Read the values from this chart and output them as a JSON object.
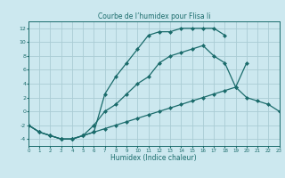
{
  "title": "Courbe de l’humidex pour Flisa Ii",
  "xlabel": "Humidex (Indice chaleur)",
  "xlim": [
    0,
    23
  ],
  "ylim": [
    -5,
    13
  ],
  "yticks": [
    -4,
    -2,
    0,
    2,
    4,
    6,
    8,
    10,
    12
  ],
  "xticks": [
    0,
    1,
    2,
    3,
    4,
    5,
    6,
    7,
    8,
    9,
    10,
    11,
    12,
    13,
    14,
    15,
    16,
    17,
    18,
    19,
    20,
    21,
    22,
    23
  ],
  "bg_color": "#cce8ef",
  "grid_color": "#aaccd4",
  "line_color": "#1a6b6b",
  "curve1_x": [
    0,
    1,
    2,
    3,
    4,
    5,
    6,
    7,
    8,
    9,
    10,
    11,
    12,
    13,
    14,
    15,
    16,
    17,
    18
  ],
  "curve1_y": [
    -2,
    -3,
    -3.5,
    -4,
    -4,
    -3.5,
    -3,
    2.5,
    5,
    7,
    9,
    11,
    11.5,
    11.5,
    12,
    12,
    12,
    12,
    11
  ],
  "curve2_x": [
    0,
    1,
    2,
    3,
    4,
    5,
    6,
    7,
    8,
    9,
    10,
    11,
    12,
    13,
    14,
    15,
    16,
    17,
    18,
    19,
    20
  ],
  "curve2_y": [
    -2,
    -3,
    -3.5,
    -4,
    -4,
    -3.5,
    -2,
    0,
    1,
    2.5,
    4,
    5,
    7,
    8,
    8.5,
    9,
    9.5,
    8,
    7,
    3.5,
    7
  ],
  "curve3_x": [
    0,
    1,
    2,
    3,
    4,
    5,
    6,
    7,
    8,
    9,
    10,
    11,
    12,
    13,
    14,
    15,
    16,
    17,
    18,
    19,
    20,
    21,
    22,
    23
  ],
  "curve3_y": [
    -2,
    -3,
    -3.5,
    -4,
    -4,
    -3.5,
    -3,
    -2.5,
    -2,
    -1.5,
    -1,
    -0.5,
    0,
    0.5,
    1,
    1.5,
    2,
    2.5,
    3,
    3.5,
    2,
    1.5,
    1,
    0
  ]
}
